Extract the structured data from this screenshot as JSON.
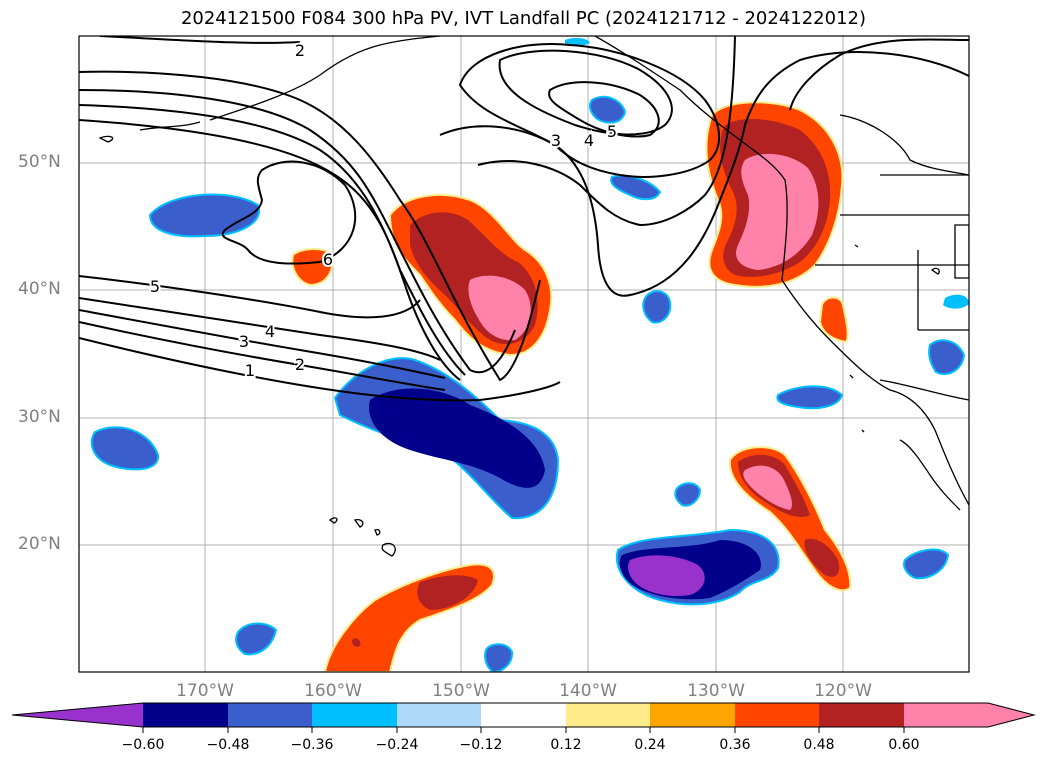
{
  "title": "2024121500 F084 300 hPa PV, IVT Landfall PC (2024121712 - 2024122012)",
  "map": {
    "lat_labels": [
      "50°N",
      "40°N",
      "30°N",
      "20°N"
    ],
    "lon_labels": [
      "170°W",
      "160°W",
      "150°W",
      "140°W",
      "130°W",
      "120°W"
    ],
    "contour_labels": [
      "2",
      "5",
      "4",
      "3",
      "2",
      "1",
      "3",
      "4",
      "5",
      "6"
    ]
  },
  "colorbar": {
    "ticks": [
      "−0.60",
      "−0.48",
      "−0.36",
      "−0.24",
      "−0.12",
      "0.12",
      "0.24",
      "0.36",
      "0.48",
      "0.60"
    ],
    "colors": [
      "#9932cc",
      "#00008b",
      "#3a5fcd",
      "#00bfff",
      "#add8f7",
      "#ffffff",
      "#ffec8b",
      "#ffa500",
      "#ff4500",
      "#b22222",
      "#ff82ab"
    ]
  }
}
